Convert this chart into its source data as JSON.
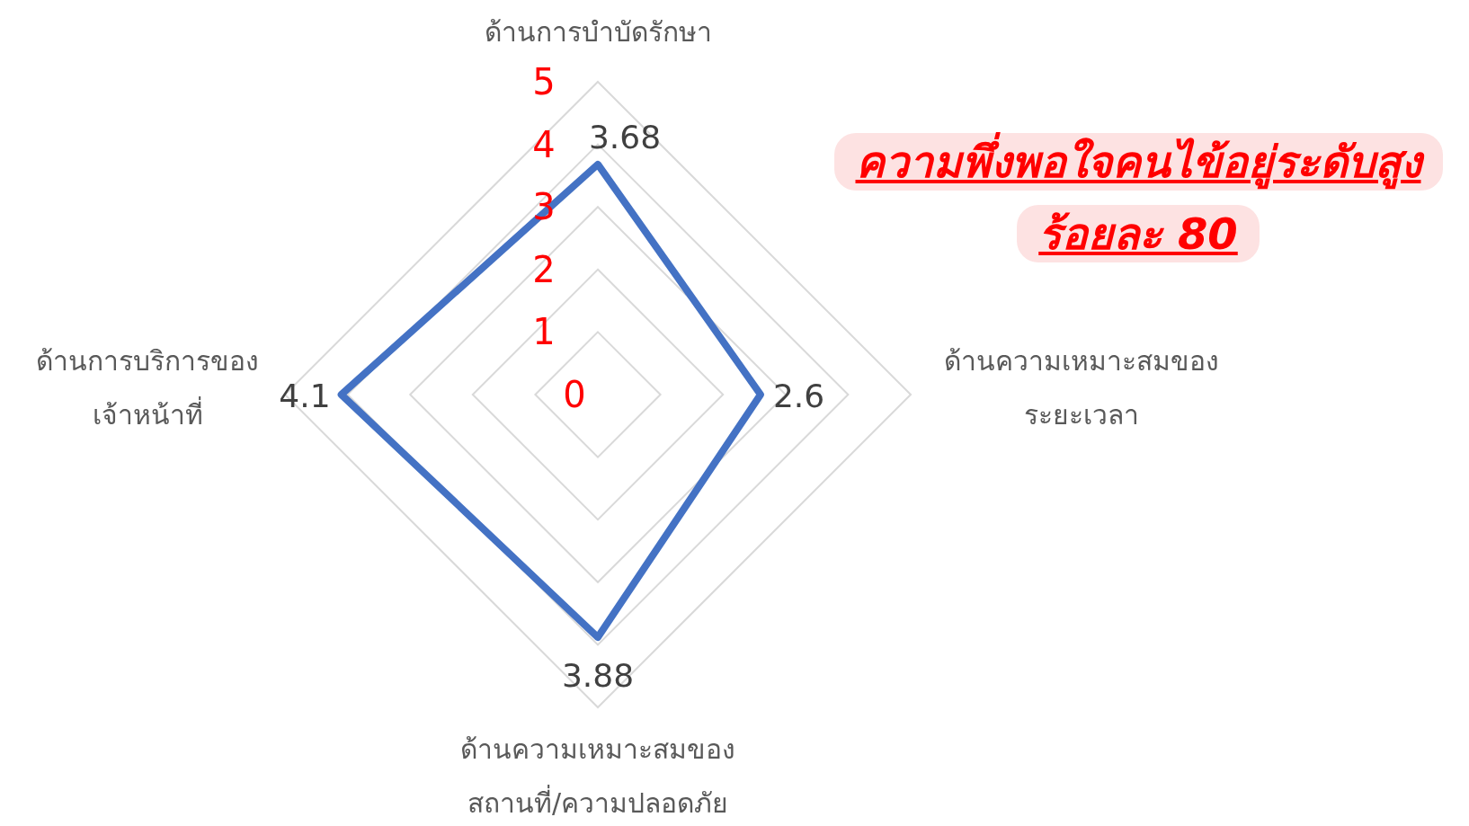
{
  "chart_data": {
    "type": "radar",
    "categories": [
      "ด้านการบำบัดรักษา",
      "ด้านความเหมาะสมของระยะเวลา",
      "ด้านความเหมาะสมของสถานที่/ความปลอดภัย",
      "ด้านการบริการของเจ้าหน้าที่"
    ],
    "series": [
      {
        "color": "#4472c4",
        "values": [
          3.68,
          2.6,
          3.88,
          4.1
        ]
      }
    ],
    "ylim": [
      0,
      5
    ],
    "yticks": [
      0,
      1,
      2,
      3,
      4,
      5
    ],
    "grid": true,
    "data_labels": true,
    "annotations": [
      "ความพึ่งพอใจคนไข้อยู่ระดับสูง ร้อยละ 80"
    ]
  }
}
